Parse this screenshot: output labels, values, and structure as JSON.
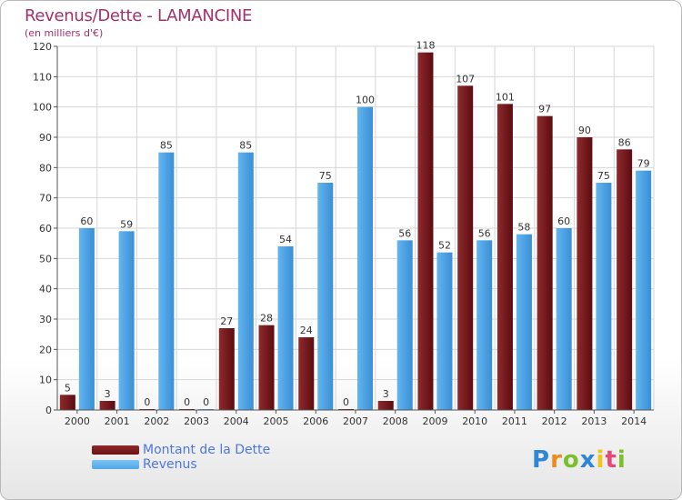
{
  "header": {
    "title": "Revenus/Dette - LAMANCINE",
    "subtitle": "(en milliers d'€)"
  },
  "colors": {
    "dette": "#7a1a1d",
    "dette_dark": "#5a0d10",
    "revenus": "#4fa6e6",
    "revenus_dark": "#2e7fc4",
    "grid": "#d6d6d6",
    "axis": "#555555",
    "text": "#333333"
  },
  "chart_data": {
    "type": "bar",
    "categories": [
      "2000",
      "2001",
      "2002",
      "2003",
      "2004",
      "2005",
      "2006",
      "2007",
      "2008",
      "2009",
      "2010",
      "2011",
      "2012",
      "2013",
      "2014"
    ],
    "series": [
      {
        "name": "Montant de la Dette",
        "values": [
          5,
          3,
          0,
          0,
          27,
          28,
          24,
          0,
          3,
          118,
          107,
          101,
          97,
          90,
          86
        ]
      },
      {
        "name": "Revenus",
        "values": [
          60,
          59,
          85,
          0,
          85,
          54,
          75,
          100,
          56,
          52,
          56,
          58,
          60,
          75,
          79
        ]
      }
    ],
    "ylim": [
      0,
      120
    ],
    "yticks": [
      0,
      10,
      20,
      30,
      40,
      50,
      60,
      70,
      80,
      90,
      100,
      110,
      120
    ],
    "grid": true,
    "legend": "bottom-left"
  },
  "legend": {
    "items": [
      {
        "label": "Montant de la Dette",
        "color": "#6b0f13"
      },
      {
        "label": "Revenus",
        "color": "#4fa6e6"
      }
    ]
  },
  "logo": {
    "letters": [
      "P",
      "r",
      "o",
      "x",
      "i",
      "t",
      "i"
    ],
    "colors": [
      "#2f86d8",
      "#f08a1c",
      "#7bbf2a",
      "#2f86d8",
      "#f0c419",
      "#e04b7a",
      "#7bbf2a"
    ]
  }
}
